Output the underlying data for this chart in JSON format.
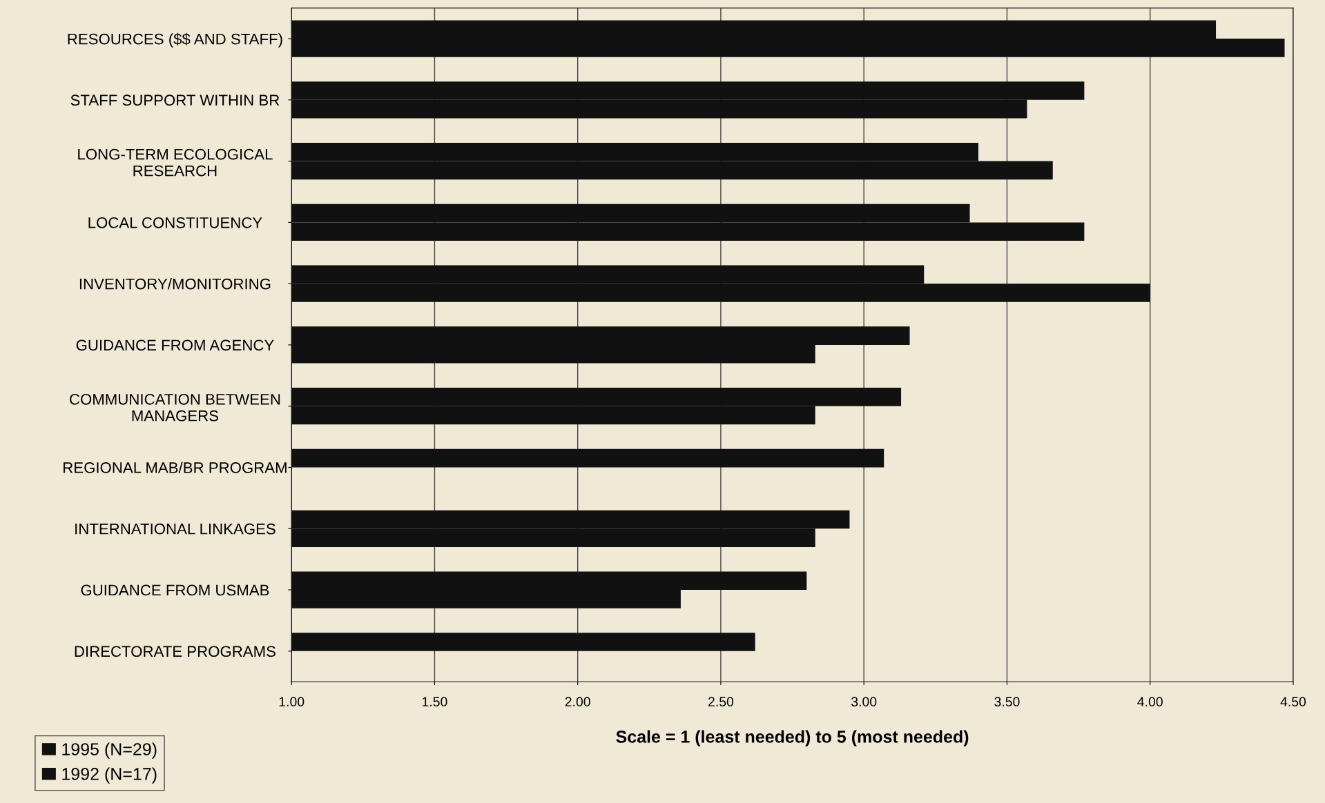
{
  "chart_data": {
    "type": "bar",
    "orientation": "horizontal",
    "xlabel": "Scale = 1 (least needed) to 5 (most needed)",
    "categories": [
      "RESOURCES ($$ AND STAFF)",
      "STAFF SUPPORT WITHIN BR",
      "LONG-TERM ECOLOGICAL\nRESEARCH",
      "LOCAL CONSTITUENCY",
      "INVENTORY/MONITORING",
      "GUIDANCE FROM AGENCY",
      "COMMUNICATION BETWEEN\nMANAGERS",
      "REGIONAL MAB/BR PROGRAM",
      "INTERNATIONAL LINKAGES",
      "GUIDANCE FROM USMAB",
      "DIRECTORATE PROGRAMS"
    ],
    "series": [
      {
        "name": "1995 (N=29)",
        "color": "#111111",
        "values": [
          4.23,
          3.77,
          3.4,
          3.37,
          3.21,
          3.16,
          3.13,
          3.07,
          2.95,
          2.8,
          2.62
        ]
      },
      {
        "name": "1992 (N=17)",
        "color": "#111111",
        "values": [
          4.47,
          3.57,
          3.66,
          3.77,
          4.0,
          2.83,
          2.83,
          null,
          2.83,
          2.36,
          null
        ]
      }
    ],
    "xlim": [
      1.0,
      4.5
    ],
    "xticks": [
      {
        "value": 1.0,
        "label": "1.00"
      },
      {
        "value": 1.5,
        "label": "1.50"
      },
      {
        "value": 2.0,
        "label": "2.00"
      },
      {
        "value": 2.5,
        "label": "2.50"
      },
      {
        "value": 3.0,
        "label": "3.00"
      },
      {
        "value": 3.5,
        "label": "3.50"
      },
      {
        "value": 4.0,
        "label": "4.00"
      },
      {
        "value": 4.5,
        "label": "4.50"
      }
    ],
    "grid": "x",
    "legend": "bottom left"
  }
}
